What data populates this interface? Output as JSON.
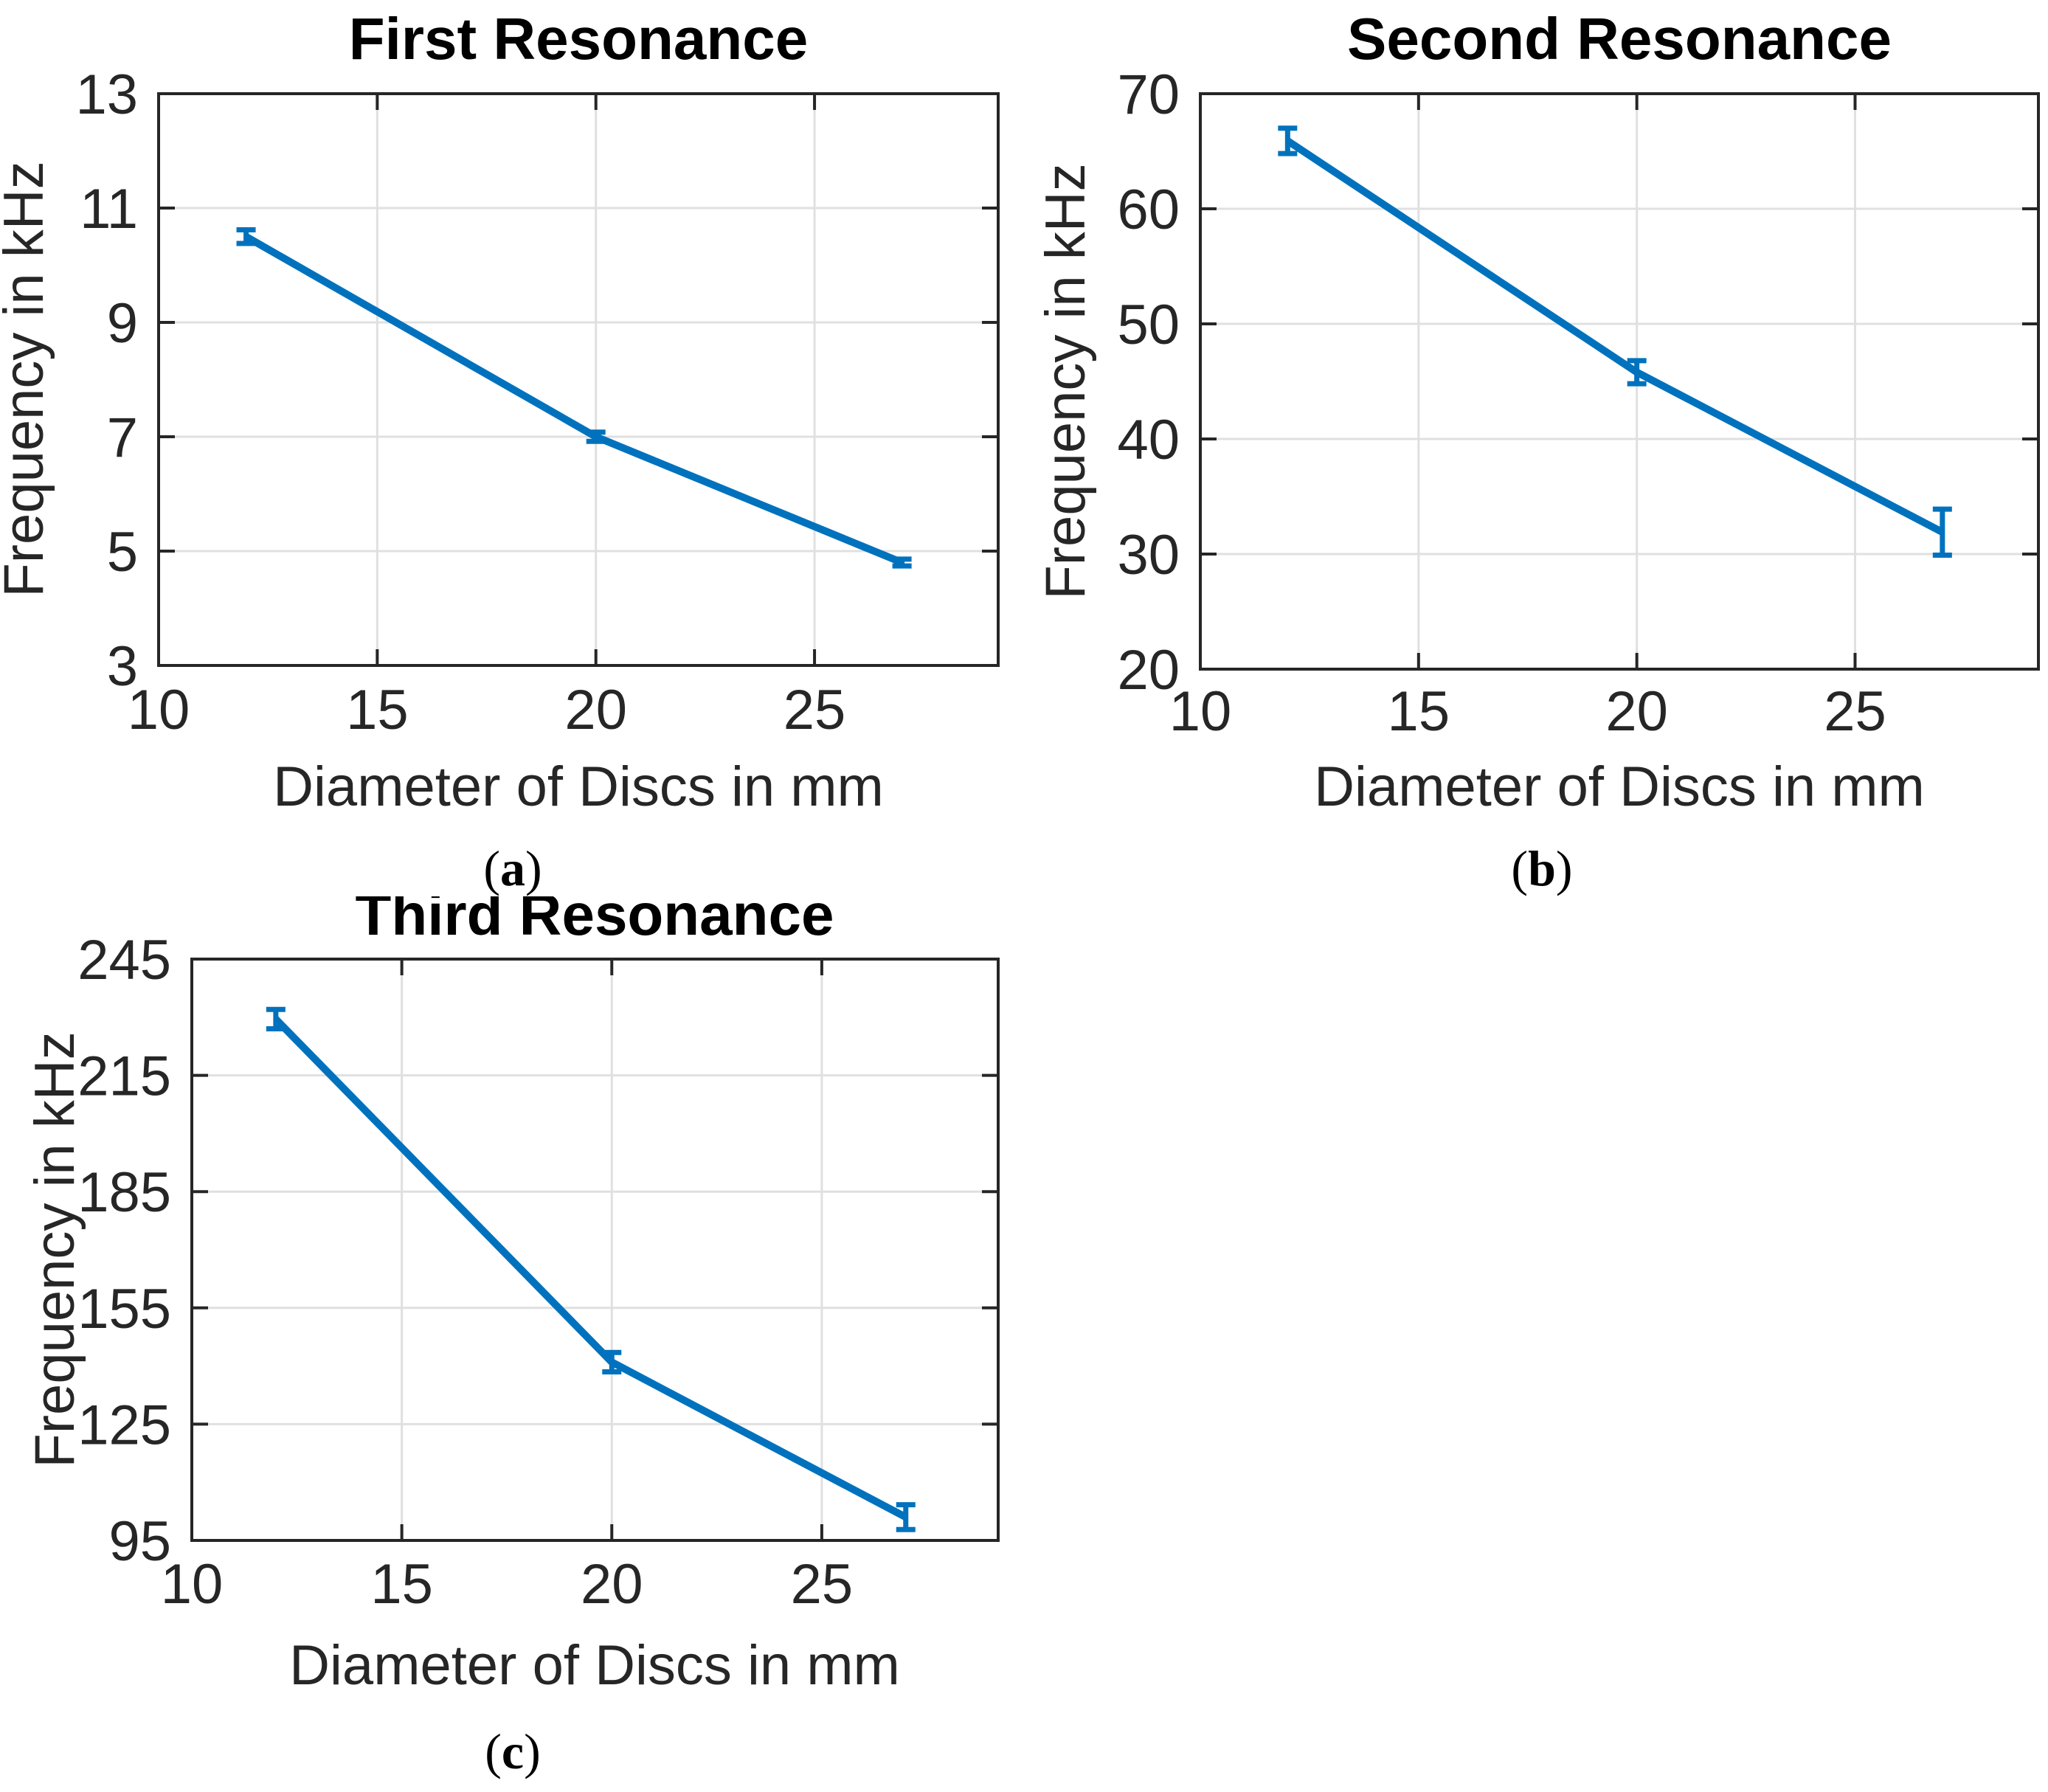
{
  "page": {
    "background": "#FFFFFF"
  },
  "style": {
    "accent_color": "#0072BD",
    "grid_color": "#E0E0E0",
    "axis_color": "#262626",
    "text_color": "#262626",
    "title_color": "#000000"
  },
  "chart_data": [
    {
      "id": "a",
      "type": "line",
      "title": "First Resonance",
      "xlabel": "Diameter of Discs in mm",
      "ylabel": "Frequency in kHz",
      "caption_letter": "a",
      "x": [
        12,
        20,
        27
      ],
      "y": [
        10.5,
        7.0,
        4.8
      ],
      "yerr": [
        0.12,
        0.08,
        0.06
      ],
      "xlim": [
        10,
        29.2
      ],
      "ylim": [
        3,
        13
      ],
      "xticks": [
        10,
        15,
        20,
        25
      ],
      "yticks": [
        3,
        5,
        7,
        9,
        11,
        13
      ],
      "grid": true,
      "legend_position": "none",
      "series_color": "#0072BD"
    },
    {
      "id": "b",
      "type": "line",
      "title": "Second Resonance",
      "xlabel": "Diameter of Discs in mm",
      "ylabel": "Frequency in kHz",
      "caption_letter": "b",
      "x": [
        12,
        20,
        27
      ],
      "y": [
        65.9,
        45.8,
        31.9
      ],
      "yerr": [
        1.1,
        1.0,
        2.0
      ],
      "xlim": [
        10,
        29.2
      ],
      "ylim": [
        20,
        70
      ],
      "xticks": [
        10,
        15,
        20,
        25
      ],
      "yticks": [
        20,
        30,
        40,
        50,
        60,
        70
      ],
      "grid": true,
      "legend_position": "none",
      "series_color": "#0072BD"
    },
    {
      "id": "c",
      "type": "line",
      "title": "Third Resonance",
      "xlabel": "Diameter of Discs in mm",
      "ylabel": "Frequency in kHz",
      "caption_letter": "c",
      "x": [
        12,
        20,
        27
      ],
      "y": [
        229.5,
        141.0,
        101.0
      ],
      "yerr": [
        2.5,
        2.5,
        3.2
      ],
      "xlim": [
        10,
        29.2
      ],
      "ylim": [
        95,
        245
      ],
      "xticks": [
        10,
        15,
        20,
        25
      ],
      "yticks": [
        95,
        125,
        155,
        185,
        215,
        245
      ],
      "grid": true,
      "legend_position": "none",
      "series_color": "#0072BD"
    }
  ]
}
